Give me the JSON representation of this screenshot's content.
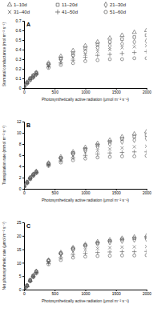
{
  "chart_data": [
    {
      "type": "scatter",
      "title": "A",
      "x_label": "Photosynthetically active radiation (μmol m⁻² s⁻¹)",
      "y_label": "Stomatal conductance (mol m⁻² s⁻¹)",
      "x": [
        0,
        50,
        100,
        150,
        200,
        400,
        600,
        800,
        1000,
        1200,
        1400,
        1600,
        1800,
        2000
      ],
      "xlim": [
        0,
        2000
      ],
      "xticks": [
        0,
        500,
        1000,
        1500,
        2000
      ],
      "ylim": [
        0,
        0.7
      ],
      "yticks": [
        0,
        0.1,
        0.2,
        0.3,
        0.4,
        0.5,
        0.6,
        0.7
      ],
      "legend": "top",
      "series": [
        {
          "name": "1–10d",
          "color": "#555555",
          "marker": "triangle",
          "values": [
            0.02,
            0.06,
            0.1,
            0.13,
            0.16,
            0.26,
            0.33,
            0.39,
            0.44,
            0.48,
            0.52,
            0.55,
            0.58,
            0.6
          ]
        },
        {
          "name": "11–20d",
          "color": "#555555",
          "marker": "square",
          "values": [
            0.02,
            0.06,
            0.1,
            0.13,
            0.16,
            0.25,
            0.31,
            0.36,
            0.41,
            0.45,
            0.48,
            0.51,
            0.53,
            0.55
          ]
        },
        {
          "name": "21–30d",
          "color": "#555555",
          "marker": "diamond",
          "values": [
            0.02,
            0.05,
            0.09,
            0.12,
            0.15,
            0.24,
            0.3,
            0.34,
            0.38,
            0.42,
            0.44,
            0.46,
            0.48,
            0.49
          ]
        },
        {
          "name": "31–40d",
          "color": "#555555",
          "marker": "x",
          "values": [
            0.02,
            0.05,
            0.09,
            0.12,
            0.15,
            0.23,
            0.28,
            0.32,
            0.35,
            0.38,
            0.4,
            0.42,
            0.43,
            0.44
          ]
        },
        {
          "name": "41–50d",
          "color": "#555555",
          "marker": "plus",
          "values": [
            0.02,
            0.05,
            0.09,
            0.11,
            0.14,
            0.22,
            0.26,
            0.29,
            0.32,
            0.34,
            0.35,
            0.36,
            0.37,
            0.38
          ]
        },
        {
          "name": "51–60d",
          "color": "#555555",
          "marker": "circle",
          "values": [
            0.02,
            0.05,
            0.08,
            0.11,
            0.14,
            0.21,
            0.24,
            0.26,
            0.28,
            0.29,
            0.3,
            0.3,
            0.31,
            0.31
          ]
        }
      ]
    },
    {
      "type": "scatter",
      "title": "B",
      "x_label": "Photosynthetically active radiation (μmol m⁻² s⁻¹)",
      "y_label": "Transpiration rate (mmol m⁻² s⁻¹)",
      "x": [
        0,
        50,
        100,
        150,
        200,
        400,
        600,
        800,
        1000,
        1200,
        1400,
        1600,
        1800,
        2000
      ],
      "xlim": [
        0,
        2000
      ],
      "xticks": [
        0,
        500,
        1000,
        1500,
        2000
      ],
      "ylim": [
        0,
        12
      ],
      "yticks": [
        0,
        2,
        4,
        6,
        8,
        10,
        12
      ],
      "series": [
        {
          "color": "#555555",
          "marker": "triangle",
          "values": [
            0.5,
            1.2,
            2,
            2.6,
            3.1,
            4.6,
            5.7,
            6.6,
            7.4,
            8.1,
            8.7,
            9.3,
            9.8,
            10.2
          ]
        },
        {
          "color": "#555555",
          "marker": "square",
          "values": [
            0.5,
            1.2,
            1.9,
            2.5,
            3,
            4.5,
            5.5,
            6.4,
            7.1,
            7.8,
            8.4,
            8.9,
            9.3,
            9.6
          ]
        },
        {
          "color": "#555555",
          "marker": "diamond",
          "values": [
            0.5,
            1.1,
            1.9,
            2.5,
            3,
            4.4,
            5.4,
            6.2,
            6.9,
            7.5,
            8,
            8.4,
            8.7,
            9
          ]
        },
        {
          "color": "#555555",
          "marker": "x",
          "values": [
            0.5,
            1.1,
            1.8,
            2.4,
            2.9,
            4.3,
            5.2,
            5.9,
            6.4,
            6.8,
            7.1,
            7.3,
            7.5,
            7.6
          ]
        },
        {
          "color": "#555555",
          "marker": "plus",
          "values": [
            0.5,
            1.1,
            1.8,
            2.4,
            2.9,
            4.2,
            5,
            5.5,
            5.9,
            6.2,
            6.4,
            6.5,
            6.6,
            6.6
          ]
        },
        {
          "color": "#555555",
          "marker": "circle",
          "values": [
            0.4,
            1,
            1.7,
            2.3,
            2.8,
            4.1,
            4.7,
            5.1,
            5.4,
            5.6,
            5.7,
            5.8,
            5.8,
            5.9
          ]
        }
      ]
    },
    {
      "type": "scatter",
      "title": "C",
      "x_label": "Photosynthetically active radiation (μmol m⁻² s⁻¹)",
      "y_label": "Net photosynthetic rate (μmol m⁻² s⁻¹)",
      "x": [
        0,
        50,
        100,
        150,
        200,
        400,
        600,
        800,
        1000,
        1200,
        1400,
        1600,
        1800,
        2000
      ],
      "xlim": [
        0,
        2000
      ],
      "xticks": [
        0,
        500,
        1000,
        1500,
        2000
      ],
      "ylim": [
        0,
        25
      ],
      "yticks": [
        0,
        5,
        10,
        15,
        20,
        25
      ],
      "series": [
        {
          "color": "#555555",
          "marker": "triangle",
          "values": [
            0.5,
            1.5,
            3.5,
            5.2,
            6.8,
            11,
            13.8,
            15.6,
            16.8,
            17.8,
            18.5,
            19.1,
            19.6,
            20
          ]
        },
        {
          "color": "#555555",
          "marker": "square",
          "values": [
            0.5,
            1.5,
            3.5,
            5.1,
            6.7,
            10.8,
            13.5,
            15.3,
            16.5,
            17.4,
            18.1,
            18.7,
            19.1,
            19.4
          ]
        },
        {
          "color": "#555555",
          "marker": "diamond",
          "values": [
            0.5,
            1.4,
            3.4,
            5,
            6.6,
            10.6,
            13.3,
            15,
            16.2,
            17,
            17.6,
            18.1,
            18.5,
            18.8
          ]
        },
        {
          "color": "#555555",
          "marker": "x",
          "values": [
            0.5,
            1.4,
            3.3,
            4.9,
            6.4,
            10.2,
            12.6,
            14,
            14.8,
            15.3,
            15.6,
            15.8,
            15.9,
            16
          ]
        },
        {
          "color": "#555555",
          "marker": "plus",
          "values": [
            0.5,
            1.3,
            3.2,
            4.8,
            6.2,
            9.8,
            11.8,
            12.9,
            13.5,
            13.8,
            14,
            14.1,
            14.1,
            14.2
          ]
        },
        {
          "color": "#555555",
          "marker": "circle",
          "values": [
            0.5,
            1.3,
            3.1,
            4.6,
            6,
            9.4,
            11,
            11.9,
            12.3,
            12.5,
            12.6,
            12.7,
            12.7,
            12.8
          ]
        }
      ]
    }
  ]
}
